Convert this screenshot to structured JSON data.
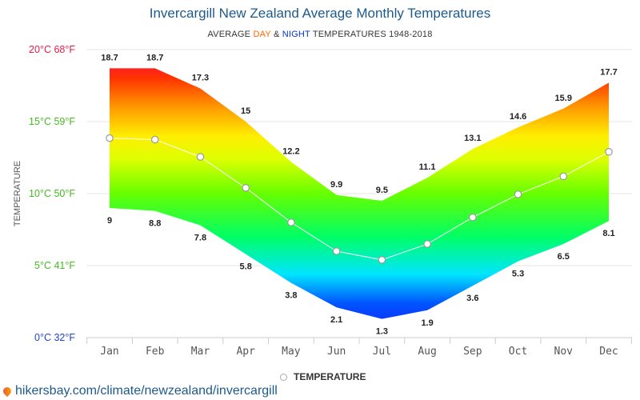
{
  "title": "Invercargill New Zealand Average Monthly Temperatures",
  "subtitle": {
    "prefix": "AVERAGE ",
    "day": "DAY",
    "amp": " & ",
    "night": "NIGHT",
    "suffix": " TEMPERATURES 1948-2018"
  },
  "legend": {
    "label": "TEMPERATURE"
  },
  "source": "hikersbay.com/climate/newzealand/invercargill",
  "colors": {
    "title": "#1d5a8c",
    "day": "#ff6600",
    "night": "#0033cc",
    "axis_hot": "#e0204a",
    "axis_mid": "#44bb22",
    "axis_cold": "#2244cc"
  },
  "chart_data": {
    "type": "area",
    "ylabel": "TEMPERATURE",
    "ylim": [
      0,
      20
    ],
    "yticks": [
      {
        "c": 20,
        "label": "20°C 68°F"
      },
      {
        "c": 15,
        "label": "15°C 59°F"
      },
      {
        "c": 10,
        "label": "10°C 50°F"
      },
      {
        "c": 5,
        "label": "5°C 41°F"
      },
      {
        "c": 0,
        "label": "0°C 32°F"
      }
    ],
    "categories": [
      "Jan",
      "Feb",
      "Mar",
      "Apr",
      "May",
      "Jun",
      "Jul",
      "Aug",
      "Sep",
      "Oct",
      "Nov",
      "Dec"
    ],
    "series": [
      {
        "values": [
          18.7,
          18.7,
          17.3,
          15,
          12.2,
          9.9,
          9.5,
          11.1,
          13.1,
          14.6,
          15.9,
          17.7
        ]
      },
      {
        "values": [
          9,
          8.8,
          7.8,
          5.8,
          3.8,
          2.1,
          1.3,
          1.9,
          3.6,
          5.3,
          6.5,
          8.1
        ]
      },
      {
        "name": "TEMPERATURE",
        "values": [
          13.85,
          13.75,
          12.55,
          10.4,
          8,
          6,
          5.4,
          6.5,
          8.35,
          9.95,
          11.2,
          12.9
        ]
      }
    ],
    "grid": true,
    "legend_position": "bottom"
  }
}
